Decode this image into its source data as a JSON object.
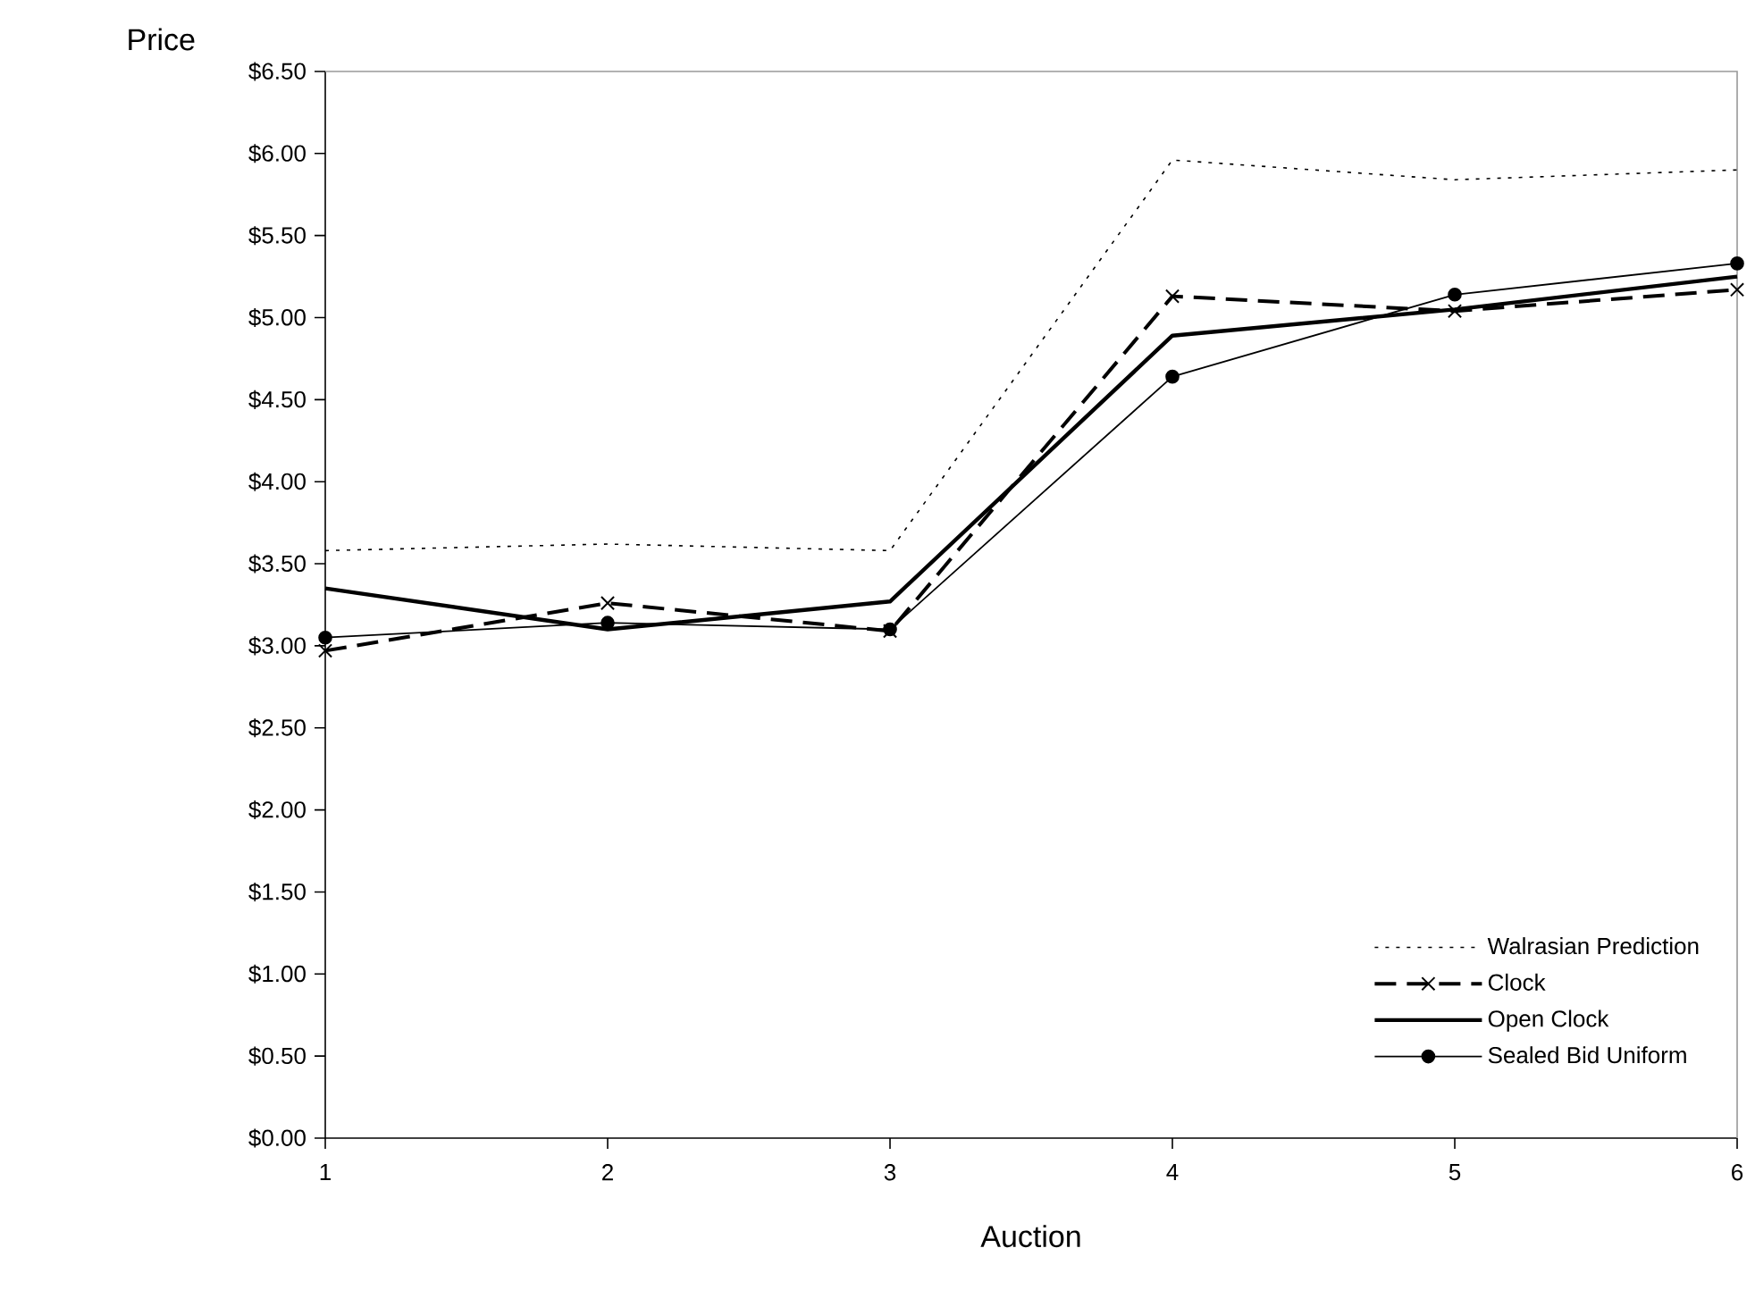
{
  "chart_data": {
    "type": "line",
    "xlabel": "Auction",
    "ylabel": "Price",
    "x": [
      1,
      2,
      3,
      4,
      5,
      6
    ],
    "xlim": [
      1,
      6
    ],
    "xticks": [
      1,
      2,
      3,
      4,
      5,
      6
    ],
    "ylim": [
      0,
      6.5
    ],
    "yticks": [
      {
        "value": 0,
        "label": "$0.00"
      },
      {
        "value": 0.5,
        "label": "$0.50"
      },
      {
        "value": 1,
        "label": "$1.00"
      },
      {
        "value": 1.5,
        "label": "$1.50"
      },
      {
        "value": 2,
        "label": "$2.00"
      },
      {
        "value": 2.5,
        "label": "$2.50"
      },
      {
        "value": 3,
        "label": "$3.00"
      },
      {
        "value": 3.5,
        "label": "$3.50"
      },
      {
        "value": 4,
        "label": "$4.00"
      },
      {
        "value": 4.5,
        "label": "$4.50"
      },
      {
        "value": 5,
        "label": "$5.00"
      },
      {
        "value": 5.5,
        "label": "$5.50"
      },
      {
        "value": 6,
        "label": "$6.00"
      },
      {
        "value": 6.5,
        "label": "$6.50"
      }
    ],
    "legend": "bottom right",
    "series": [
      {
        "name": "Walrasian Prediction",
        "color": "#000000",
        "line_style": "dotted",
        "marker": "none",
        "values": [
          3.58,
          3.62,
          3.58,
          5.96,
          5.84,
          5.9
        ]
      },
      {
        "name": "Clock",
        "color": "#000000",
        "line_style": "dashed",
        "marker": "cross",
        "values": [
          2.97,
          3.26,
          3.09,
          5.13,
          5.04,
          5.17
        ]
      },
      {
        "name": "Open Clock",
        "color": "#000000",
        "line_style": "solid",
        "marker": "none",
        "values": [
          3.35,
          3.1,
          3.27,
          4.89,
          5.05,
          5.25
        ]
      },
      {
        "name": "Sealed Bid Uniform",
        "color": "#000000",
        "line_style": "solid",
        "marker": "circle",
        "values": [
          3.05,
          3.14,
          3.1,
          4.64,
          5.14,
          5.33
        ]
      }
    ]
  }
}
